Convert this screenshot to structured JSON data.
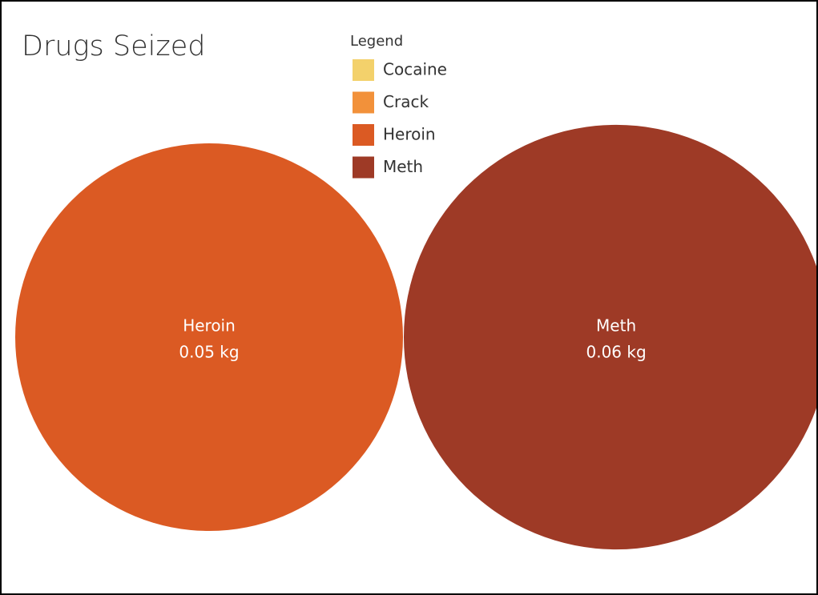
{
  "chart_data": {
    "type": "bubble",
    "title": "Drugs Seized",
    "legend_title": "Legend",
    "categories": [
      "Cocaine",
      "Crack",
      "Heroin",
      "Meth"
    ],
    "colors": [
      "#f3d16b",
      "#f2913a",
      "#db5a23",
      "#9e3a26"
    ],
    "values": [
      null,
      null,
      0.05,
      0.06
    ],
    "value_labels": [
      null,
      null,
      "0.05 kg",
      "0.06 kg"
    ]
  }
}
